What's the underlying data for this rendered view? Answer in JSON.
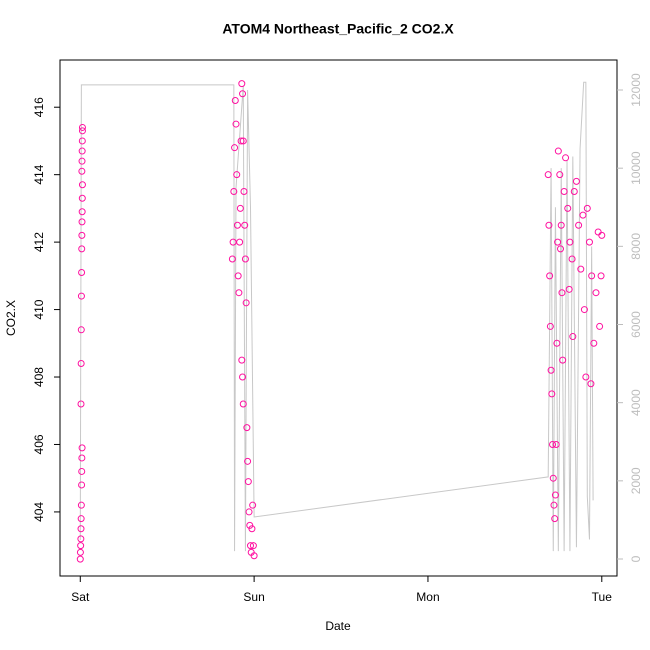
{
  "chart_data": {
    "type": "scatter",
    "title": "ATOM4 Northeast_Pacific_2 CO2.X",
    "x_label": "Date",
    "y_label": "CO2.X",
    "xlim": [
      -2.8,
      74.1
    ],
    "xticks": [
      {
        "value": 0,
        "label": "Sat"
      },
      {
        "value": 24,
        "label": "Sun"
      },
      {
        "value": 48,
        "label": "Mon"
      },
      {
        "value": 72,
        "label": "Tue"
      }
    ],
    "ylim": [
      402.1,
      417.4
    ],
    "yticks": [
      404,
      406,
      408,
      410,
      412,
      414,
      416
    ],
    "y2lim": [
      -435,
      12768
    ],
    "y2ticks": [
      0,
      2000,
      4000,
      6000,
      8000,
      10000,
      12000
    ],
    "series": [
      {
        "name": "CO2.X",
        "color": "#ff10a0",
        "x": [
          0.0,
          0.02,
          0.05,
          0.08,
          0.1,
          0.12,
          0.15,
          0.18,
          0.2,
          0.22,
          0.25,
          0.1,
          0.12,
          0.14,
          0.16,
          0.18,
          0.2,
          0.22,
          0.24,
          0.26,
          0.28,
          0.3,
          0.22,
          0.24,
          0.26,
          0.28,
          0.3,
          0.3,
          21.0,
          21.1,
          21.2,
          21.3,
          21.4,
          21.5,
          21.6,
          21.7,
          21.8,
          21.9,
          22.0,
          22.1,
          22.2,
          22.3,
          22.4,
          22.5,
          22.6,
          22.7,
          22.8,
          22.9,
          22.3,
          22.4,
          22.5,
          23.0,
          23.1,
          23.2,
          23.3,
          23.4,
          23.5,
          23.6,
          23.7,
          23.8,
          23.9,
          24.0,
          64.6,
          64.7,
          64.8,
          64.9,
          65.0,
          65.1,
          65.2,
          65.3,
          65.4,
          65.5,
          65.6,
          65.7,
          65.8,
          65.9,
          66.0,
          66.2,
          66.4,
          66.5,
          66.6,
          66.8,
          67.0,
          67.3,
          67.6,
          67.9,
          68.2,
          68.5,
          68.8,
          69.1,
          69.4,
          69.6,
          69.8,
          70.0,
          70.3,
          70.6,
          70.9,
          71.2,
          71.5,
          71.7,
          71.9,
          72.0,
          68.0,
          67.5,
          66.3,
          70.5
        ],
        "values": [
          402.6,
          402.8,
          403.0,
          403.2,
          403.5,
          403.8,
          404.2,
          404.8,
          405.2,
          405.6,
          405.9,
          407.2,
          408.4,
          409.4,
          410.4,
          411.1,
          411.8,
          412.2,
          412.6,
          412.9,
          413.3,
          413.7,
          414.1,
          414.4,
          414.7,
          415.0,
          415.3,
          415.4,
          411.5,
          412.0,
          413.5,
          414.8,
          416.2,
          415.5,
          414.0,
          412.5,
          411.0,
          410.5,
          412.0,
          413.0,
          415.0,
          416.7,
          416.4,
          415.0,
          413.5,
          412.5,
          411.5,
          410.2,
          408.5,
          408.0,
          407.2,
          406.5,
          405.5,
          404.9,
          404.0,
          403.6,
          403.0,
          402.8,
          403.5,
          404.2,
          403.0,
          402.7,
          414.0,
          412.5,
          411.0,
          409.5,
          408.2,
          407.5,
          406.0,
          405.0,
          404.2,
          403.8,
          404.5,
          406.0,
          409.0,
          412.0,
          414.7,
          414.0,
          412.5,
          410.5,
          408.5,
          413.5,
          414.5,
          413.0,
          412.0,
          411.5,
          413.5,
          413.8,
          412.5,
          411.2,
          412.8,
          410.0,
          408.0,
          413.0,
          412.0,
          411.0,
          409.0,
          410.5,
          412.3,
          409.5,
          411.0,
          412.2,
          409.2,
          410.6,
          411.8,
          407.8
        ]
      },
      {
        "type": "line",
        "axis": "y2",
        "color": "#c8c8c8",
        "x": [
          0,
          0.15,
          21.2,
          21.3,
          21.5,
          22.5,
          22.8,
          23.1,
          23.5,
          24.0,
          64.6,
          65.0,
          65.3,
          65.6,
          66.0,
          66.4,
          66.8,
          67.2,
          67.6,
          68.0,
          68.5,
          69.0,
          69.5,
          69.8,
          70.0,
          70.3,
          70.6,
          70.8
        ],
        "values": [
          485,
          12130,
          12130,
          200,
          9500,
          12100,
          200,
          12000,
          9000,
          1075,
          2100,
          10000,
          200,
          9000,
          200,
          10000,
          200,
          10200,
          200,
          10300,
          300,
          10500,
          12200,
          12200,
          1600,
          500,
          8000,
          1500
        ]
      }
    ]
  }
}
